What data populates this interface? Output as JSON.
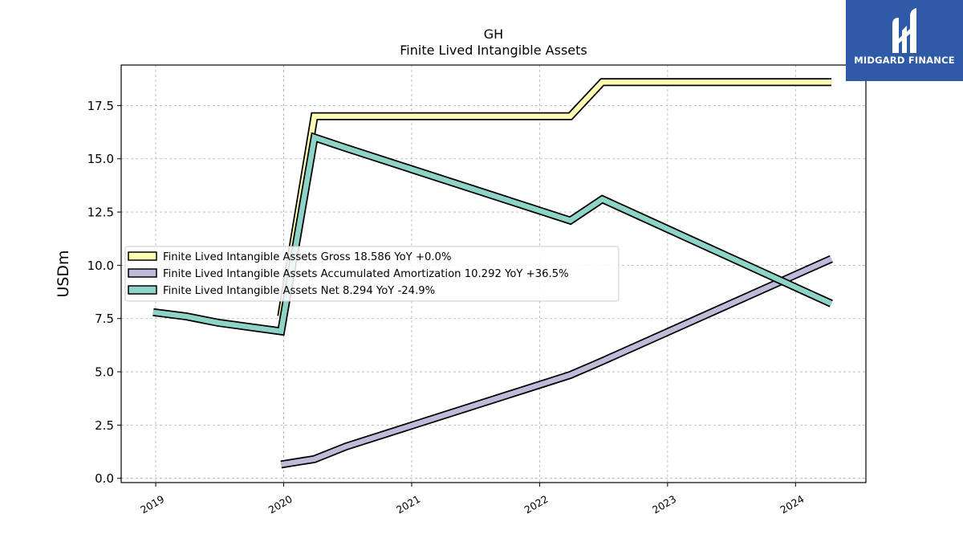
{
  "brand": {
    "name": "MIDGARD FINANCE",
    "bg_color": "#2e5aa8",
    "icon": "midgard-logo-icon"
  },
  "chart_data": {
    "type": "line",
    "title": "GH",
    "subtitle": "Finite Lived Intangible Assets",
    "xlabel": "",
    "ylabel": "USDm",
    "ylim": [
      -0.2,
      19.4
    ],
    "xlim": [
      2018.73,
      2024.55
    ],
    "yticks": [
      0.0,
      2.5,
      5.0,
      7.5,
      10.0,
      12.5,
      15.0,
      17.5
    ],
    "ytick_labels": [
      "0.0",
      "2.5",
      "5.0",
      "7.5",
      "10.0",
      "12.5",
      "15.0",
      "17.5"
    ],
    "xticks": [
      2019,
      2020,
      2021,
      2022,
      2023,
      2024
    ],
    "xtick_labels": [
      "2019",
      "2020",
      "2021",
      "2022",
      "2023",
      "2024"
    ],
    "grid": true,
    "legend_position": "center-left",
    "series": [
      {
        "name": "Finite Lived Intangible Assets Gross",
        "legend_label": "Finite Lived Intangible Assets Gross  18.586 YoY +0.0%",
        "color": "#ffffb3",
        "x": [
          2019.98,
          2020.24,
          2022.24,
          2022.49,
          2024.28
        ],
        "y": [
          7.6,
          17.0,
          17.0,
          18.6,
          18.6
        ]
      },
      {
        "name": "Finite Lived Intangible Assets Accumulated Amortization",
        "legend_label": "Finite Lived Intangible Assets Accumulated Amortization  10.292 YoY +36.5%",
        "color": "#bebada",
        "x": [
          2019.98,
          2020.24,
          2020.49,
          2022.24,
          2022.49,
          2024.28
        ],
        "y": [
          0.65,
          0.9,
          1.5,
          4.85,
          5.5,
          10.3
        ]
      },
      {
        "name": "Finite Lived Intangible Assets Net",
        "legend_label": "Finite Lived Intangible Assets Net  8.294 YoY -24.9%",
        "color": "#8dd3c7",
        "x": [
          2018.98,
          2019.24,
          2019.49,
          2019.98,
          2020.24,
          2020.49,
          2022.24,
          2022.49,
          2024.28
        ],
        "y": [
          7.8,
          7.6,
          7.3,
          6.9,
          16.0,
          15.5,
          12.1,
          13.1,
          8.2
        ]
      }
    ]
  }
}
